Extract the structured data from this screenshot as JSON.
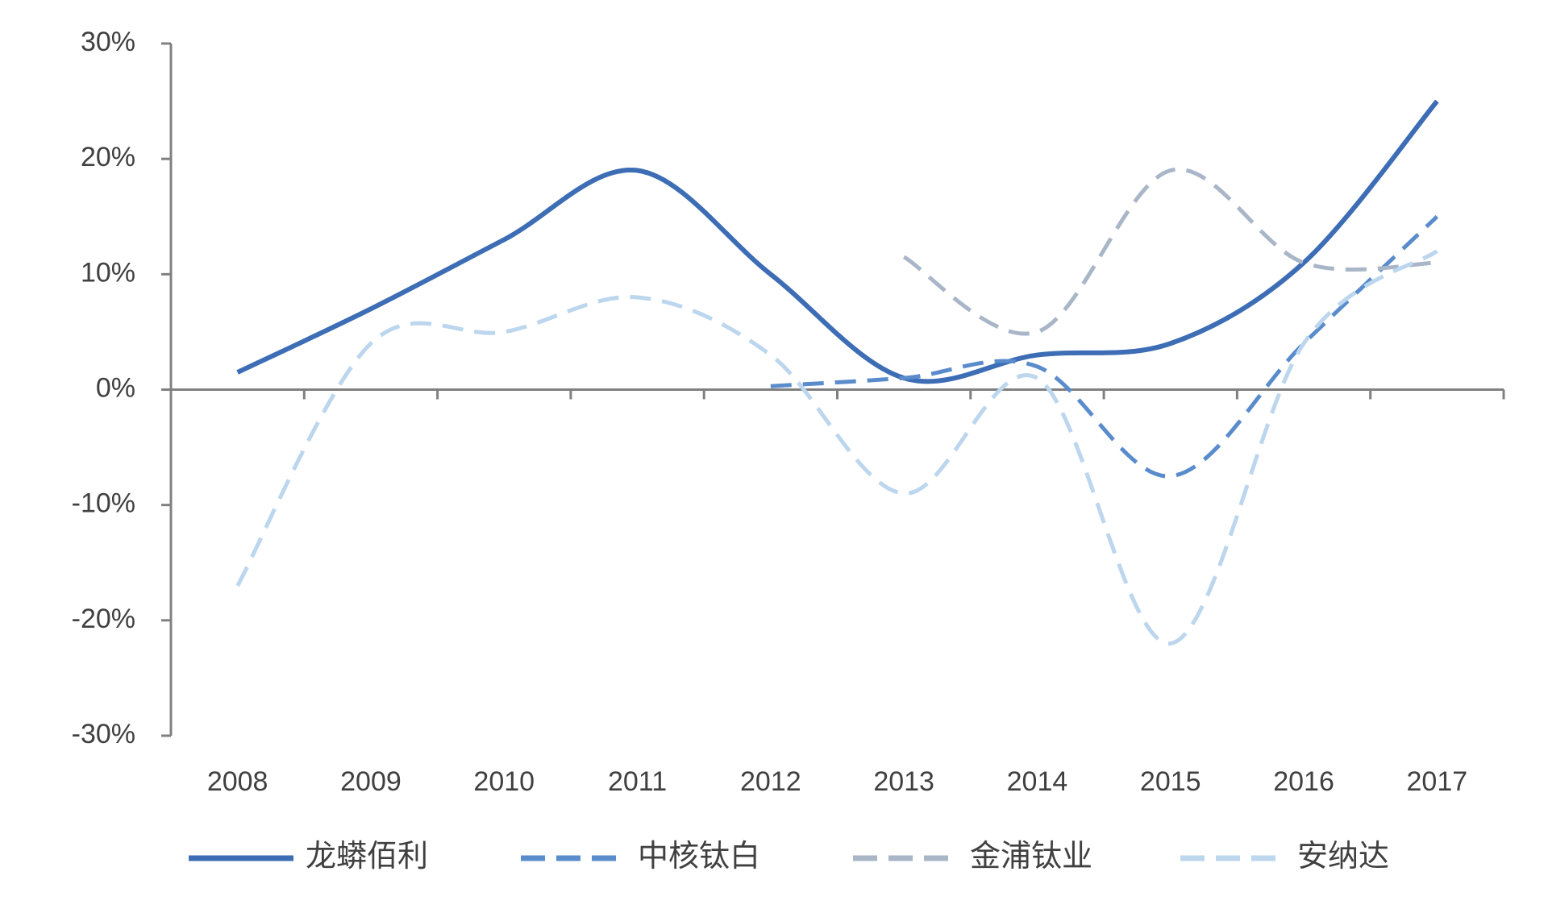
{
  "chart_data": {
    "type": "line",
    "categories": [
      "2008",
      "2009",
      "2010",
      "2011",
      "2012",
      "2013",
      "2014",
      "2015",
      "2016",
      "2017"
    ],
    "series": [
      {
        "name": "龙蟒佰利",
        "color": "#3d6db4",
        "line_style": "solid",
        "values": [
          1.5,
          7,
          13,
          19,
          10,
          1,
          3,
          4,
          11,
          25
        ]
      },
      {
        "name": "中核钛白",
        "color": "#5a8ccc",
        "line_style": "dashed",
        "values": [
          null,
          null,
          null,
          null,
          0.3,
          1,
          2,
          -7.5,
          4,
          15
        ]
      },
      {
        "name": "金浦钛业",
        "color": "#a9b6c8",
        "line_style": "dashed",
        "values": [
          null,
          null,
          null,
          null,
          null,
          11.5,
          5,
          19,
          11,
          11
        ]
      },
      {
        "name": "安纳达",
        "color": "#bcd6ee",
        "line_style": "dashed",
        "values": [
          -17,
          4,
          5,
          8,
          3,
          -9,
          1,
          -22,
          4,
          12
        ]
      }
    ],
    "ylim": [
      -30,
      30
    ],
    "yticks": [
      {
        "value": -30,
        "label": "-30%"
      },
      {
        "value": -20,
        "label": "-20%"
      },
      {
        "value": -10,
        "label": "-10%"
      },
      {
        "value": 0,
        "label": "0%"
      },
      {
        "value": 10,
        "label": "10%"
      },
      {
        "value": 20,
        "label": "20%"
      },
      {
        "value": 30,
        "label": "30%"
      }
    ],
    "grid": false,
    "smooth": true,
    "legend": "bottom"
  }
}
